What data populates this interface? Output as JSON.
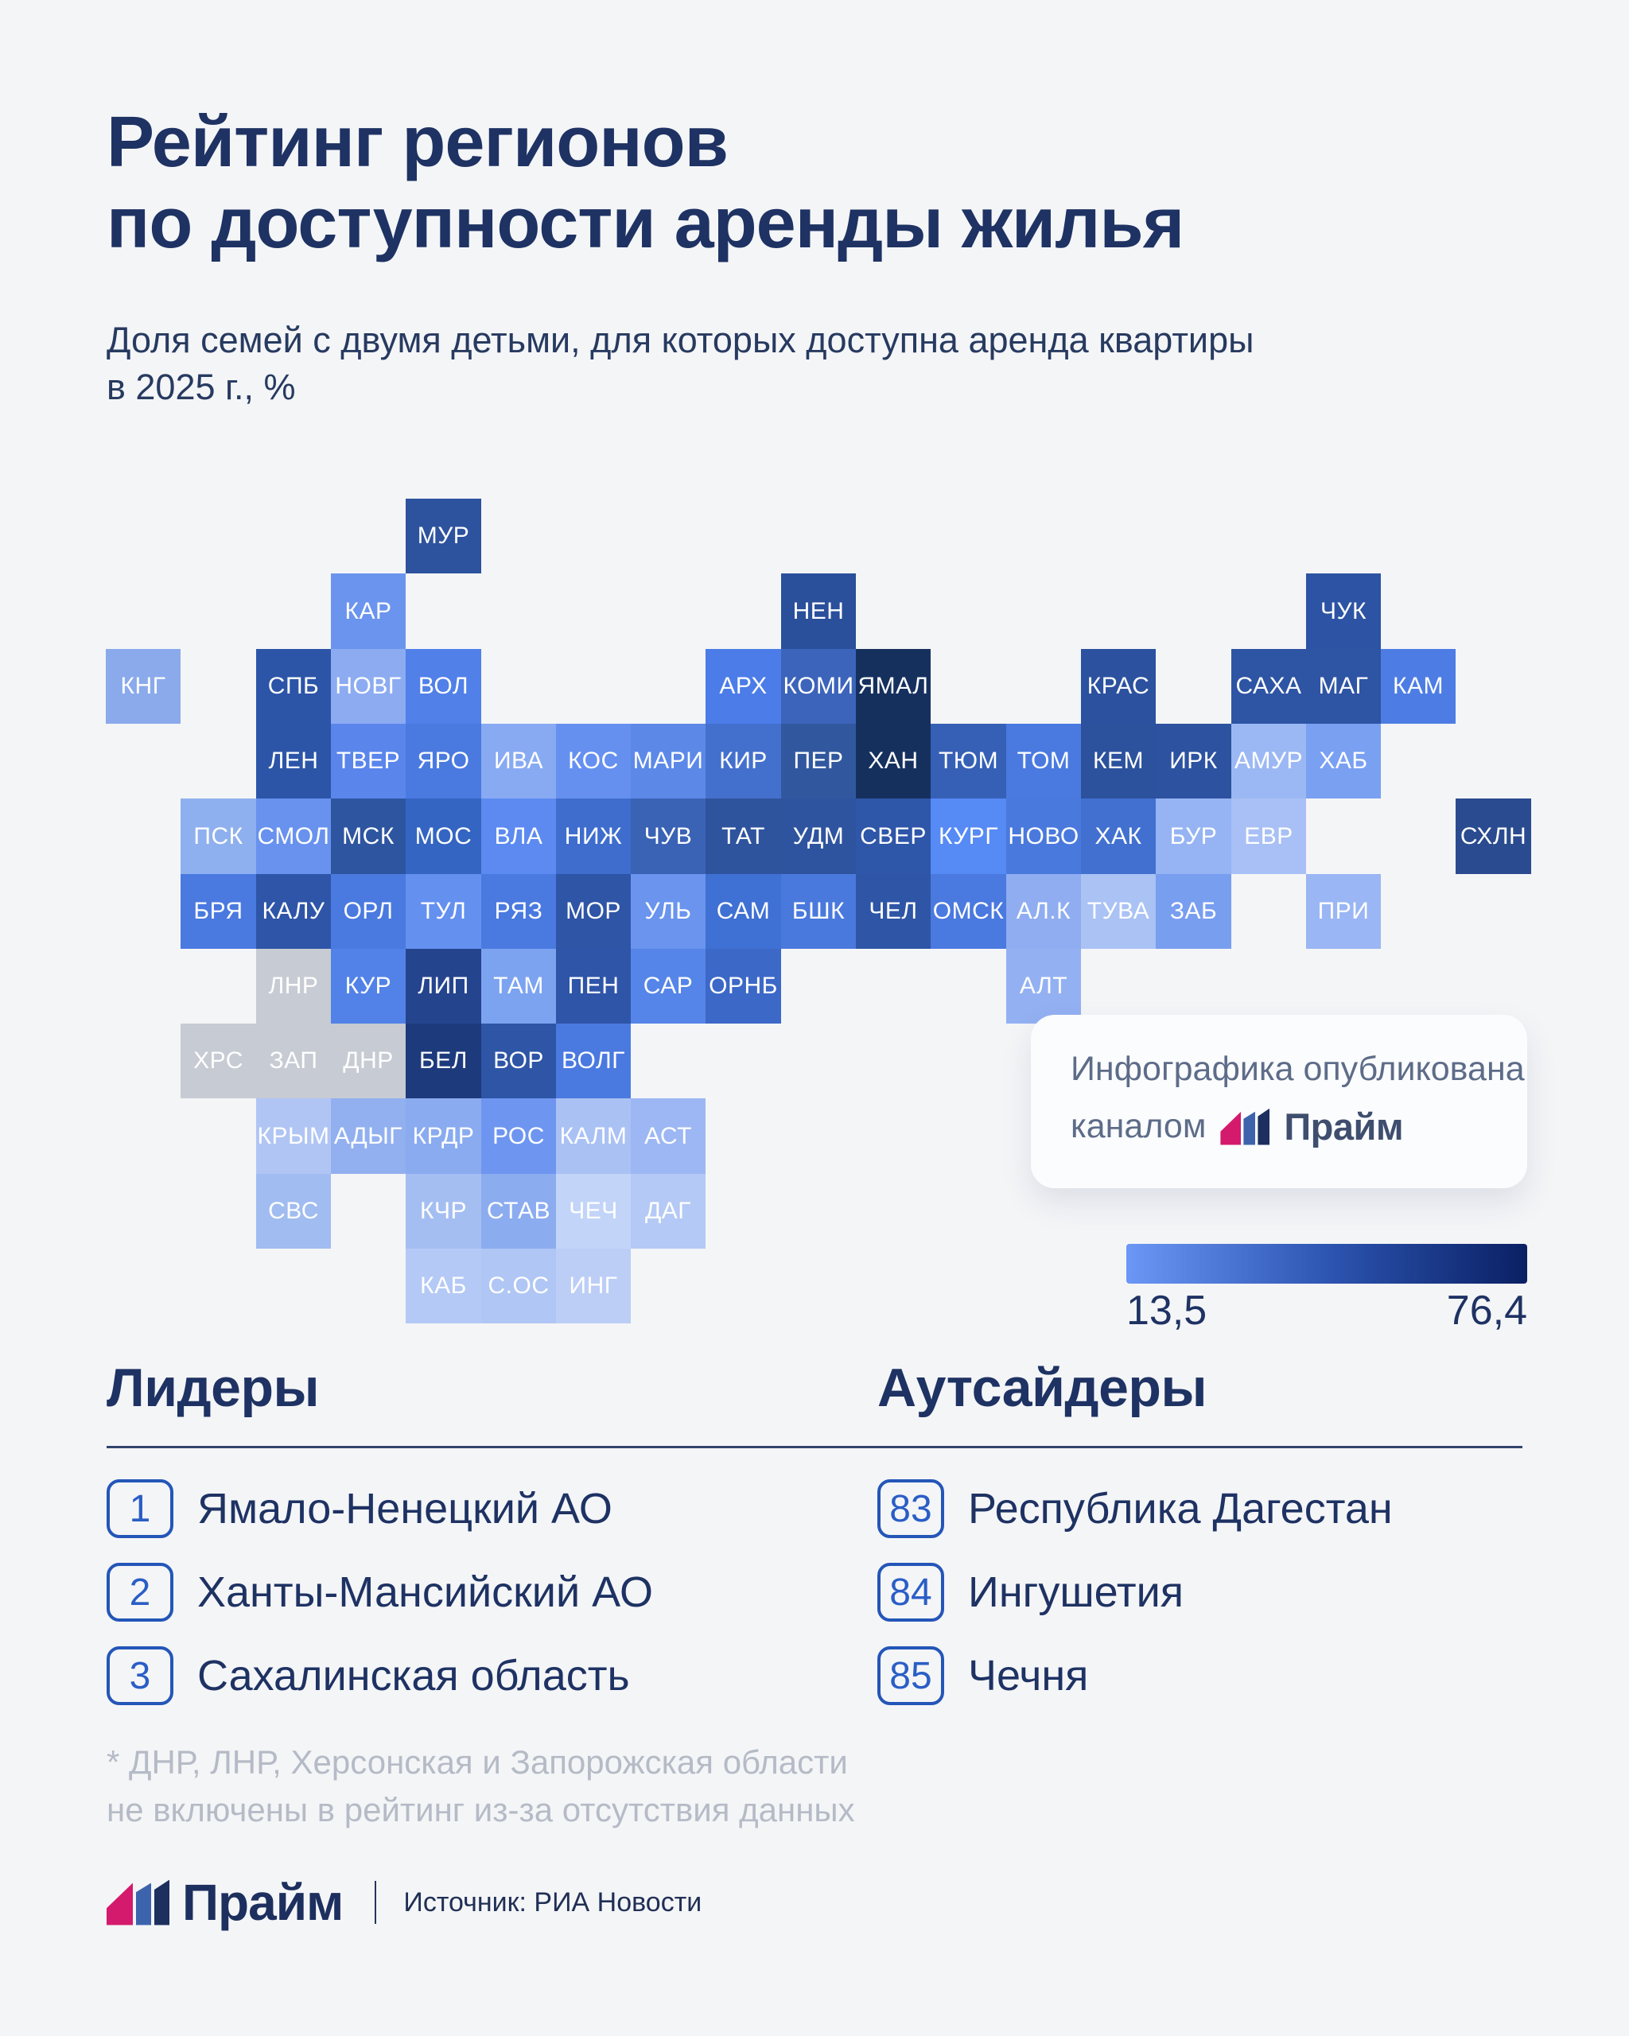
{
  "title": {
    "line1": "Рейтинг регионов",
    "line2": "по доступности аренды жилья"
  },
  "subtitle": {
    "line1": "Доля семей с двумя детьми, для которых доступна аренда квартиры",
    "line2": "в 2025 г., %"
  },
  "publisher_card": {
    "line1": "Инфографика опубликована",
    "line2_prefix": "каналом",
    "brand": "Прайм"
  },
  "legend": {
    "min_label": "13,5",
    "max_label": "76,4",
    "gradient": [
      "#6b97f6",
      "#2d55b2",
      "#0a2063"
    ]
  },
  "leaders": {
    "heading": "Лидеры",
    "items": [
      {
        "rank": "1",
        "name": "Ямало-Ненецкий АО"
      },
      {
        "rank": "2",
        "name": "Ханты-Мансийский АО"
      },
      {
        "rank": "3",
        "name": "Сахалинская область"
      }
    ]
  },
  "outsiders": {
    "heading": "Аутсайдеры",
    "items": [
      {
        "rank": "83",
        "name": "Республика Дагестан"
      },
      {
        "rank": "84",
        "name": "Ингушетия"
      },
      {
        "rank": "85",
        "name": "Чечня"
      }
    ]
  },
  "footnote": {
    "line1": "* ДНР, ЛНР, Херсонская и Запорожская области",
    "line2": "не включены в рейтинг из-за отсутствия данных"
  },
  "footer": {
    "brand": "Прайм",
    "source": "Источник: РИА Новости"
  },
  "brand_colors": {
    "pink": "#d41a6c",
    "blue": "#3d63ad",
    "navy": "#1c2f5e"
  },
  "chart_data": {
    "type": "heatmap",
    "title": "Рейтинг регионов по доступности аренды жилья",
    "subtitle": "Доля семей с двумя детьми, для которых доступна аренда квартиры в 2025 г., %",
    "legend": {
      "min": 13.5,
      "max": 76.4,
      "min_color": "#6b97f6",
      "max_color": "#0a2063"
    },
    "no_data_color": "#c7cbd3",
    "no_data_regions": [
      "ЛНР",
      "ХРС",
      "ЗАП",
      "ДНР"
    ],
    "leaders_ranks": [
      1,
      2,
      3
    ],
    "outsiders_ranks": [
      83,
      84,
      85
    ],
    "regions": [
      {
        "label": "МУР",
        "row": 0,
        "col": 4,
        "color": "#2d529e"
      },
      {
        "label": "КАР",
        "row": 1,
        "col": 3,
        "color": "#6b94ee"
      },
      {
        "label": "НЕН",
        "row": 1,
        "col": 9,
        "color": "#2a4f9b"
      },
      {
        "label": "ЧУК",
        "row": 1,
        "col": 16,
        "color": "#2d53a4"
      },
      {
        "label": "КНГ",
        "row": 2,
        "col": 0,
        "color": "#8aaaec"
      },
      {
        "label": "СПБ",
        "row": 2,
        "col": 2,
        "color": "#2c55a7"
      },
      {
        "label": "НОВГ",
        "row": 2,
        "col": 3,
        "color": "#8cabf1"
      },
      {
        "label": "ВОЛ",
        "row": 2,
        "col": 4,
        "color": "#5080e8"
      },
      {
        "label": "АРХ",
        "row": 2,
        "col": 8,
        "color": "#4b7ce8"
      },
      {
        "label": "КОМИ",
        "row": 2,
        "col": 9,
        "color": "#3c64bb"
      },
      {
        "label": "ЯМАЛ",
        "row": 2,
        "col": 10,
        "color": "#16305e"
      },
      {
        "label": "КРАС",
        "row": 2,
        "col": 13,
        "color": "#2c519f"
      },
      {
        "label": "САХА",
        "row": 2,
        "col": 15,
        "color": "#2e54a4"
      },
      {
        "label": "МАГ",
        "row": 2,
        "col": 16,
        "color": "#2e54a4"
      },
      {
        "label": "КАМ",
        "row": 2,
        "col": 17,
        "color": "#4d7de4"
      },
      {
        "label": "ЛЕН",
        "row": 3,
        "col": 2,
        "color": "#2c55a7"
      },
      {
        "label": "ТВЕР",
        "row": 3,
        "col": 3,
        "color": "#5a86ec"
      },
      {
        "label": "ЯРО",
        "row": 3,
        "col": 4,
        "color": "#4a7ae0"
      },
      {
        "label": "ИВА",
        "row": 3,
        "col": 5,
        "color": "#88aaf2"
      },
      {
        "label": "КОС",
        "row": 3,
        "col": 6,
        "color": "#6690f0"
      },
      {
        "label": "МАРИ",
        "row": 3,
        "col": 7,
        "color": "#5c89e8"
      },
      {
        "label": "КИР",
        "row": 3,
        "col": 8,
        "color": "#4470cd"
      },
      {
        "label": "ПЕР",
        "row": 3,
        "col": 9,
        "color": "#31589f"
      },
      {
        "label": "ХАН",
        "row": 3,
        "col": 10,
        "color": "#16305e"
      },
      {
        "label": "ТЮМ",
        "row": 3,
        "col": 11,
        "color": "#3560b5"
      },
      {
        "label": "ТОМ",
        "row": 3,
        "col": 12,
        "color": "#4a7ae0"
      },
      {
        "label": "КЕМ",
        "row": 3,
        "col": 13,
        "color": "#2c519d"
      },
      {
        "label": "ИРК",
        "row": 3,
        "col": 14,
        "color": "#2d52a0"
      },
      {
        "label": "АМУР",
        "row": 3,
        "col": 15,
        "color": "#9cb8f4"
      },
      {
        "label": "ХАБ",
        "row": 3,
        "col": 16,
        "color": "#7aa0f2"
      },
      {
        "label": "ПСК",
        "row": 4,
        "col": 1,
        "color": "#8fb0ee"
      },
      {
        "label": "СМОЛ",
        "row": 4,
        "col": 2,
        "color": "#6892ee"
      },
      {
        "label": "МСК",
        "row": 4,
        "col": 3,
        "color": "#2e55a0"
      },
      {
        "label": "МОС",
        "row": 4,
        "col": 4,
        "color": "#3465c2"
      },
      {
        "label": "ВЛА",
        "row": 4,
        "col": 5,
        "color": "#5c8af0"
      },
      {
        "label": "НИЖ",
        "row": 4,
        "col": 6,
        "color": "#3e6dce"
      },
      {
        "label": "ЧУВ",
        "row": 4,
        "col": 7,
        "color": "#3a62b5"
      },
      {
        "label": "ТАТ",
        "row": 4,
        "col": 8,
        "color": "#2f549e"
      },
      {
        "label": "УДМ",
        "row": 4,
        "col": 9,
        "color": "#2f549f"
      },
      {
        "label": "СВЕР",
        "row": 4,
        "col": 10,
        "color": "#2e56a9"
      },
      {
        "label": "КУРГ",
        "row": 4,
        "col": 11,
        "color": "#568af5"
      },
      {
        "label": "НОВО",
        "row": 4,
        "col": 12,
        "color": "#4a79dd"
      },
      {
        "label": "ХАК",
        "row": 4,
        "col": 13,
        "color": "#4170d0"
      },
      {
        "label": "БУР",
        "row": 4,
        "col": 14,
        "color": "#96b4f3"
      },
      {
        "label": "ЕВР",
        "row": 4,
        "col": 15,
        "color": "#a8c0f5"
      },
      {
        "label": "СХЛН",
        "row": 4,
        "col": 18,
        "color": "#2a4b8f"
      },
      {
        "label": "БРЯ",
        "row": 5,
        "col": 1,
        "color": "#4a79e0"
      },
      {
        "label": "КАЛУ",
        "row": 5,
        "col": 2,
        "color": "#2e55a8"
      },
      {
        "label": "ОРЛ",
        "row": 5,
        "col": 3,
        "color": "#4a7ae0"
      },
      {
        "label": "ТУЛ",
        "row": 5,
        "col": 4,
        "color": "#6490f0"
      },
      {
        "label": "РЯЗ",
        "row": 5,
        "col": 5,
        "color": "#4a7ae0"
      },
      {
        "label": "МОР",
        "row": 5,
        "col": 6,
        "color": "#2e55a6"
      },
      {
        "label": "УЛЬ",
        "row": 5,
        "col": 7,
        "color": "#6a94ee"
      },
      {
        "label": "САМ",
        "row": 5,
        "col": 8,
        "color": "#3f70d4"
      },
      {
        "label": "БШК",
        "row": 5,
        "col": 9,
        "color": "#4a79dd"
      },
      {
        "label": "ЧЕЛ",
        "row": 5,
        "col": 10,
        "color": "#2e55a6"
      },
      {
        "label": "ОМСК",
        "row": 5,
        "col": 11,
        "color": "#4a79e0"
      },
      {
        "label": "АЛ.К",
        "row": 5,
        "col": 12,
        "color": "#8fadf0"
      },
      {
        "label": "ТУВА",
        "row": 5,
        "col": 13,
        "color": "#aac2f4"
      },
      {
        "label": "ЗАБ",
        "row": 5,
        "col": 14,
        "color": "#789ef0"
      },
      {
        "label": "ПРИ",
        "row": 5,
        "col": 16,
        "color": "#9ab6f4"
      },
      {
        "label": "ЛНР",
        "row": 6,
        "col": 2,
        "color": "#c7cbd3",
        "no_data": true
      },
      {
        "label": "КУР",
        "row": 6,
        "col": 3,
        "color": "#5282e8"
      },
      {
        "label": "ЛИП",
        "row": 6,
        "col": 4,
        "color": "#24448d"
      },
      {
        "label": "ТАМ",
        "row": 6,
        "col": 5,
        "color": "#7ca3f0"
      },
      {
        "label": "ПЕН",
        "row": 6,
        "col": 6,
        "color": "#2e55a8"
      },
      {
        "label": "САР",
        "row": 6,
        "col": 7,
        "color": "#5585e8"
      },
      {
        "label": "ОРНБ",
        "row": 6,
        "col": 8,
        "color": "#3c68c8"
      },
      {
        "label": "АЛТ",
        "row": 6,
        "col": 12,
        "color": "#93b1f2"
      },
      {
        "label": "ХРС",
        "row": 7,
        "col": 1,
        "color": "#c7cbd3",
        "no_data": true
      },
      {
        "label": "ЗАП",
        "row": 7,
        "col": 2,
        "color": "#c7cbd3",
        "no_data": true
      },
      {
        "label": "ДНР",
        "row": 7,
        "col": 3,
        "color": "#c7cbd3",
        "no_data": true
      },
      {
        "label": "БЕЛ",
        "row": 7,
        "col": 4,
        "color": "#1d3a7d"
      },
      {
        "label": "ВОР",
        "row": 7,
        "col": 5,
        "color": "#2e55a6"
      },
      {
        "label": "ВОЛГ",
        "row": 7,
        "col": 6,
        "color": "#4a79e0"
      },
      {
        "label": "КРЫМ",
        "row": 8,
        "col": 2,
        "color": "#b0c5f4"
      },
      {
        "label": "АДЫГ",
        "row": 8,
        "col": 3,
        "color": "#92b0f0"
      },
      {
        "label": "КРДР",
        "row": 8,
        "col": 4,
        "color": "#8aabf0"
      },
      {
        "label": "РОС",
        "row": 8,
        "col": 5,
        "color": "#6e95f0"
      },
      {
        "label": "КАЛМ",
        "row": 8,
        "col": 6,
        "color": "#aac1f4"
      },
      {
        "label": "АСТ",
        "row": 8,
        "col": 7,
        "color": "#9cb7f3"
      },
      {
        "label": "СВС",
        "row": 9,
        "col": 2,
        "color": "#a0bcf0"
      },
      {
        "label": "КЧР",
        "row": 9,
        "col": 4,
        "color": "#a5bef2"
      },
      {
        "label": "СТАВ",
        "row": 9,
        "col": 5,
        "color": "#8cacf0"
      },
      {
        "label": "ЧЕЧ",
        "row": 9,
        "col": 6,
        "color": "#c2d4f8"
      },
      {
        "label": "ДАГ",
        "row": 9,
        "col": 7,
        "color": "#b4c9f5"
      },
      {
        "label": "КАБ",
        "row": 10,
        "col": 4,
        "color": "#b4c9f5"
      },
      {
        "label": "С.ОС",
        "row": 10,
        "col": 5,
        "color": "#b0c6f4"
      },
      {
        "label": "ИНГ",
        "row": 10,
        "col": 6,
        "color": "#bccef6"
      }
    ]
  }
}
